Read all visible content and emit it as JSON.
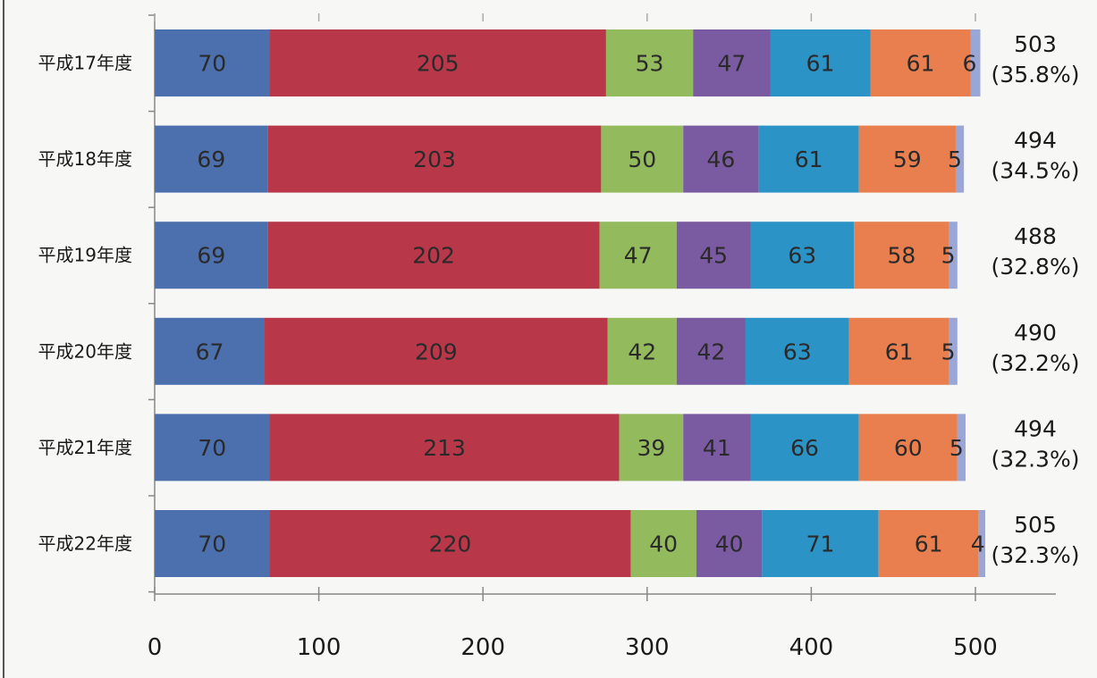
{
  "chart_data": {
    "type": "bar",
    "orientation": "horizontal",
    "stacked": true,
    "title": "",
    "xlabel": "",
    "ylabel": "",
    "xlim": [
      0,
      500
    ],
    "x_ticks": [
      0,
      100,
      200,
      300,
      400,
      500
    ],
    "grid": false,
    "legend": "none",
    "categories": [
      "平成17年度",
      "平成18年度",
      "平成19年度",
      "平成20年度",
      "平成21年度",
      "平成22年度"
    ],
    "series": [
      {
        "color": "#4c6fae",
        "values": [
          70,
          69,
          69,
          67,
          70,
          70
        ]
      },
      {
        "color": "#b8384a",
        "values": [
          205,
          203,
          202,
          209,
          213,
          220
        ]
      },
      {
        "color": "#93bb5e",
        "values": [
          53,
          50,
          47,
          42,
          39,
          40
        ]
      },
      {
        "color": "#7a5aa0",
        "values": [
          47,
          46,
          45,
          42,
          41,
          40
        ]
      },
      {
        "color": "#2b93c6",
        "values": [
          61,
          61,
          63,
          63,
          66,
          71
        ]
      },
      {
        "color": "#e97f4e",
        "values": [
          61,
          59,
          58,
          61,
          60,
          61
        ]
      },
      {
        "color": "#9aa6d6",
        "values": [
          6,
          5,
          5,
          5,
          5,
          4
        ]
      }
    ],
    "totals": [
      "503",
      "494",
      "488",
      "490",
      "494",
      "505"
    ],
    "total_percents": [
      "(35.8%)",
      "(34.5%)",
      "(32.8%)",
      "(32.2%)",
      "(32.3%)",
      "(32.3%)"
    ]
  }
}
